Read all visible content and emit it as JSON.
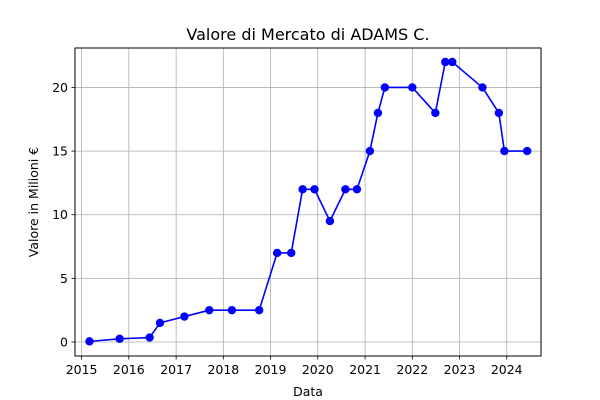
{
  "chart_data": {
    "type": "line",
    "title": "Valore di Mercato di ADAMS C.",
    "xlabel": "Data",
    "ylabel": "Valore in Milioni €",
    "x_ticks": [
      "2015",
      "2016",
      "2017",
      "2018",
      "2019",
      "2020",
      "2021",
      "2022",
      "2023",
      "2024"
    ],
    "y_ticks": [
      "0",
      "5",
      "10",
      "15",
      "20"
    ],
    "xlim": [
      "2014-11-11",
      "2024-09-22"
    ],
    "ylim": [
      -1.1,
      23.1
    ],
    "grid": true,
    "series": [
      {
        "color": "#0000ff",
        "x": [
          "2015-03-03",
          "2015-10-22",
          "2016-06-10",
          "2016-08-29",
          "2017-03-06",
          "2017-09-14",
          "2018-03-08",
          "2018-10-05",
          "2019-02-21",
          "2019-06-10",
          "2019-09-06",
          "2019-12-07",
          "2020-04-04",
          "2020-08-02",
          "2020-10-30",
          "2021-02-07",
          "2021-04-10",
          "2021-06-03",
          "2022-01-01",
          "2022-06-28",
          "2022-09-13",
          "2022-11-06",
          "2023-06-27",
          "2023-11-01",
          "2023-12-14",
          "2024-06-07"
        ],
        "values": [
          0.05,
          0.25,
          0.35,
          1.5,
          2.0,
          2.5,
          2.5,
          2.5,
          7.0,
          7.0,
          12.0,
          12.0,
          9.5,
          12.0,
          12.0,
          15.0,
          18.0,
          20.0,
          20.0,
          18.0,
          22.0,
          22.0,
          20.0,
          18.0,
          15.0,
          15.0
        ]
      }
    ]
  }
}
